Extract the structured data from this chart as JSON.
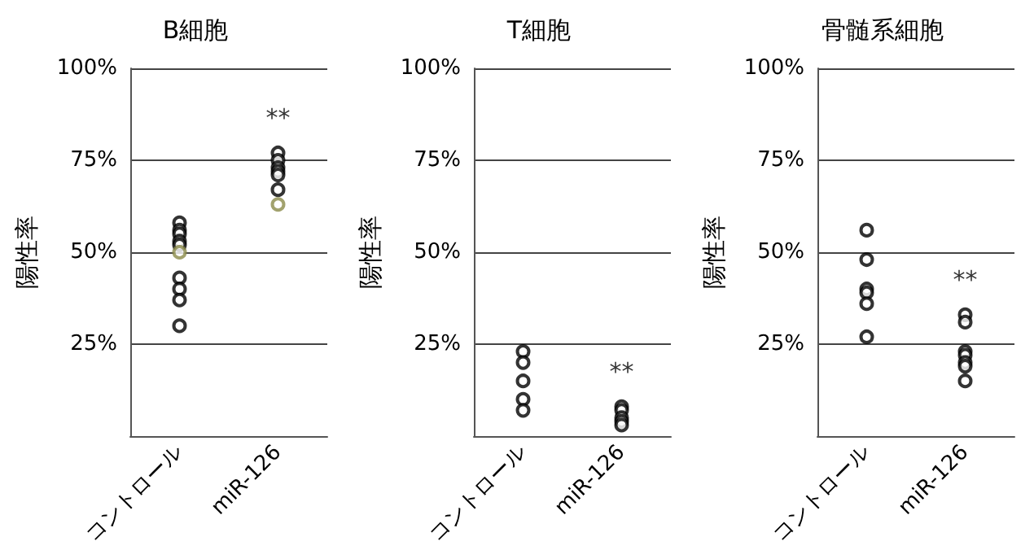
{
  "chart_data": [
    {
      "type": "scatter",
      "title": "B細胞",
      "ylabel": "陽性率",
      "categories": [
        "コントロール",
        "miR-126"
      ],
      "ylim": [
        0,
        100
      ],
      "yticks": [
        {
          "value": 25,
          "label": "25%"
        },
        {
          "value": 50,
          "label": "50%"
        },
        {
          "value": 75,
          "label": "75%"
        },
        {
          "value": 100,
          "label": "100%"
        }
      ],
      "grid": "y",
      "marker": "circle",
      "series": [
        {
          "color": "#000000",
          "x": [
            "コントロール",
            "コントロール",
            "コントロール",
            "コントロール",
            "コントロール",
            "コントロール",
            "コントロール",
            "コントロール",
            "コントロール",
            "miR-126",
            "miR-126",
            "miR-126",
            "miR-126",
            "miR-126",
            "miR-126"
          ],
          "values": [
            58,
            56,
            55,
            53,
            52,
            43,
            40,
            37,
            30,
            77,
            75,
            73,
            72,
            71,
            67
          ]
        },
        {
          "color": "#8b8b4a",
          "x": [
            "コントロール",
            "miR-126"
          ],
          "values": [
            50,
            63
          ]
        }
      ],
      "annotations": [
        "**"
      ]
    },
    {
      "type": "scatter",
      "title": "T細胞",
      "ylabel": "陽性率",
      "categories": [
        "コントロール",
        "miR-126"
      ],
      "ylim": [
        0,
        100
      ],
      "yticks": [
        {
          "value": 25,
          "label": "25%"
        },
        {
          "value": 50,
          "label": "50%"
        },
        {
          "value": 75,
          "label": "75%"
        },
        {
          "value": 100,
          "label": "100%"
        }
      ],
      "grid": "y",
      "marker": "circle",
      "series": [
        {
          "color": "#000000",
          "x": [
            "コントロール",
            "コントロール",
            "コントロール",
            "コントロール",
            "コントロール",
            "miR-126",
            "miR-126",
            "miR-126",
            "miR-126",
            "miR-126"
          ],
          "values": [
            23,
            20,
            15,
            10,
            7,
            8,
            7,
            5,
            4,
            3
          ]
        }
      ],
      "annotations": [
        "**"
      ]
    },
    {
      "type": "scatter",
      "title": "骨髄系細胞",
      "ylabel": "陽性率",
      "categories": [
        "コントロール",
        "miR-126"
      ],
      "ylim": [
        0,
        100
      ],
      "yticks": [
        {
          "value": 25,
          "label": "25%"
        },
        {
          "value": 50,
          "label": "50%"
        },
        {
          "value": 75,
          "label": "75%"
        },
        {
          "value": 100,
          "label": "100%"
        }
      ],
      "grid": "y",
      "marker": "circle",
      "series": [
        {
          "color": "#000000",
          "x": [
            "コントロール",
            "コントロール",
            "コントロール",
            "コントロール",
            "コントロール",
            "コントロール",
            "miR-126",
            "miR-126",
            "miR-126",
            "miR-126",
            "miR-126",
            "miR-126",
            "miR-126"
          ],
          "values": [
            56,
            48,
            40,
            39,
            36,
            27,
            33,
            31,
            23,
            22,
            20,
            19,
            15
          ]
        }
      ],
      "annotations": [
        "**"
      ]
    }
  ]
}
